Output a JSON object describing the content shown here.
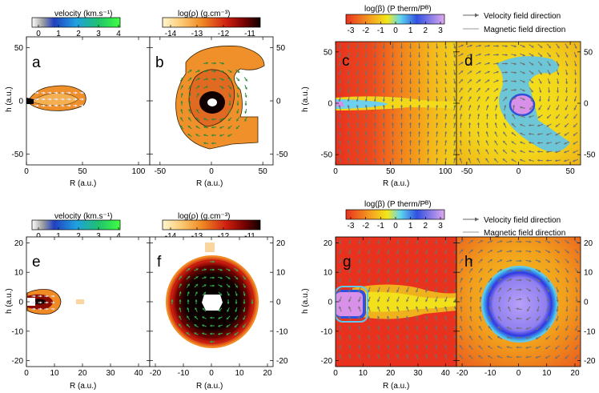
{
  "colorbars": {
    "velocity": {
      "title": "velocity (km.s⁻¹)",
      "ticks": [
        "0",
        "1",
        "2",
        "3",
        "4"
      ]
    },
    "density": {
      "title": "log(ρ) (g.cm⁻³)",
      "ticks": [
        "-14",
        "-13",
        "-12",
        "-11"
      ]
    },
    "beta": {
      "title": "log(β) (P therm/Pᴮ)",
      "ticks": [
        "-3",
        "-2",
        "-1",
        "0",
        "1",
        "2",
        "3"
      ]
    }
  },
  "legend": {
    "velocity": "Velocity field direction",
    "magnetic": "Magnetic field direction"
  },
  "axes": {
    "xlabel": "R (a.u.)",
    "ylabel": "h (a.u.)"
  },
  "panels": {
    "a": {
      "label": "a",
      "xticks": [
        "0",
        "50",
        "100"
      ],
      "yticks": [
        "50",
        "0",
        "-50"
      ]
    },
    "b": {
      "label": "b",
      "xticks": [
        "-50",
        "0",
        "50"
      ],
      "yticks": [
        "50",
        "0",
        "-50"
      ]
    },
    "c": {
      "label": "c",
      "xticks": [
        "0",
        "50",
        "100"
      ],
      "yticks": [
        "50",
        "0",
        "-50"
      ]
    },
    "d": {
      "label": "d",
      "xticks": [
        "-50",
        "0",
        "50"
      ],
      "yticks": [
        "50",
        "0",
        "-50"
      ]
    },
    "e": {
      "label": "e",
      "xticks": [
        "0",
        "10",
        "20",
        "30",
        "40"
      ],
      "yticks": [
        "20",
        "10",
        "0",
        "-10",
        "-20"
      ]
    },
    "f": {
      "label": "f",
      "xticks": [
        "-20",
        "-10",
        "0",
        "10",
        "20"
      ],
      "yticks": [
        "20",
        "10",
        "0",
        "-10",
        "-20"
      ]
    },
    "g": {
      "label": "g",
      "xticks": [
        "0",
        "10",
        "20",
        "30",
        "40"
      ],
      "yticks": [
        "20",
        "10",
        "0",
        "-10",
        "-20"
      ]
    },
    "h": {
      "label": "h",
      "xticks": [
        "-20",
        "-10",
        "0",
        "10",
        "20"
      ],
      "yticks": [
        "20",
        "10",
        "0",
        "-10",
        "-20"
      ]
    }
  },
  "chart_data": [
    {
      "type": "heatmap",
      "panel": "a",
      "quantity": "velocity",
      "xlabel": "R (a.u.)",
      "ylabel": "h (a.u.)",
      "xlim": [
        0,
        110
      ],
      "ylim": [
        -60,
        60
      ]
    },
    {
      "type": "heatmap",
      "panel": "b",
      "quantity": "density",
      "xlim": [
        -60,
        60
      ],
      "ylim": [
        -60,
        60
      ],
      "clim": [
        -14.5,
        -10.7
      ]
    },
    {
      "type": "heatmap",
      "panel": "c",
      "quantity": "beta",
      "xlabel": "R (a.u.)",
      "ylabel": "h (a.u.)",
      "xlim": [
        0,
        110
      ],
      "ylim": [
        -60,
        60
      ],
      "clim": [
        -3,
        3
      ]
    },
    {
      "type": "heatmap",
      "panel": "d",
      "quantity": "beta",
      "xlim": [
        -60,
        60
      ],
      "ylim": [
        -60,
        60
      ],
      "clim": [
        -3,
        3
      ]
    },
    {
      "type": "heatmap",
      "panel": "e",
      "quantity": "velocity",
      "xlabel": "R (a.u.)",
      "ylabel": "h (a.u.)",
      "xlim": [
        0,
        44
      ],
      "ylim": [
        -22,
        22
      ]
    },
    {
      "type": "heatmap",
      "panel": "f",
      "quantity": "density",
      "xlabel": "R (a.u.)",
      "xlim": [
        -22,
        22
      ],
      "ylim": [
        -22,
        22
      ]
    },
    {
      "type": "heatmap",
      "panel": "g",
      "quantity": "beta",
      "xlabel": "R (a.u.)",
      "ylabel": "h (a.u.)",
      "xlim": [
        0,
        44
      ],
      "ylim": [
        -22,
        22
      ]
    },
    {
      "type": "heatmap",
      "panel": "h",
      "quantity": "beta",
      "xlim": [
        -22,
        22
      ],
      "ylim": [
        -22,
        22
      ]
    }
  ],
  "colors": {
    "beta_red": "#e8321e",
    "beta_yellow": "#f2dd1a",
    "beta_cyan": "#60c8e8",
    "beta_blue": "#4a6fe0",
    "beta_violet": "#d88ae8",
    "density_orange": "#f08a24",
    "density_dark": "#2a0000"
  }
}
